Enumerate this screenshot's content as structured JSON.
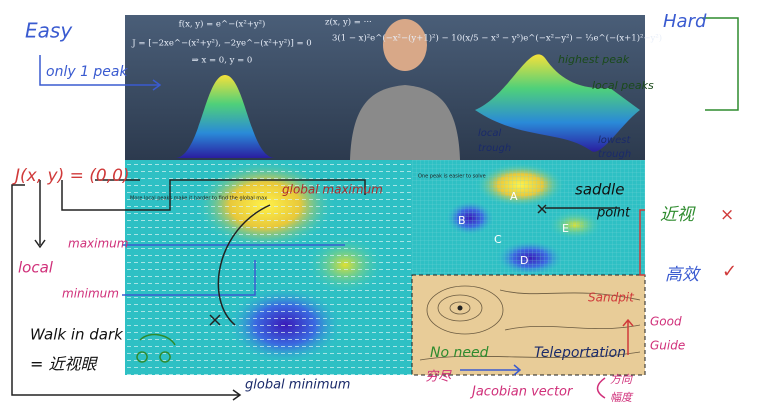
{
  "left_frame": {
    "formula_lines": [
      "f(x, y) = e^−(x²+y²)",
      "J = [−2xe^−(x²+y²), −2ye^−(x²+y²)] = 0",
      "⇒ x = 0, y = 0"
    ]
  },
  "right_frame": {
    "formula_lines": [
      "z(x, y) = ···",
      "3(1 − x)²e^(−x²−(y+1)²) − 10(x/5 − x³ − y⁵)e^(−x²−y²) − ⅓e^(−(x+1)²−y²)"
    ]
  },
  "field_caption": "More local peaks make it harder to find the global max",
  "heatmap_caption": "One peak is easier to solve",
  "points": [
    "A",
    "B",
    "C",
    "D",
    "E"
  ],
  "notes": {
    "easy": "Easy",
    "only_one_peak": "only 1 peak",
    "hard": "Hard",
    "highest_peak": "highest peak",
    "local_peaks": "local peaks",
    "local_trough": [
      "local",
      "trough"
    ],
    "lowest_trough": [
      "lowest",
      "trough"
    ],
    "jacobian_zero": "J(x, y) = (0,0)",
    "global_maximum": "global maximum",
    "maximum": "maximum",
    "minimum": "minimum",
    "local": "local",
    "walk_in_dark": "Walk in dark",
    "myopia": "= 近视眼",
    "global_minimum": "global minimum",
    "saddle_point": [
      "saddle",
      "point"
    ],
    "nearsighted": "近视",
    "cross": "×",
    "efficient": "高效",
    "check": "✓",
    "good_guide": [
      "Good",
      "Guide"
    ],
    "sandpit": "Sandpit",
    "no_need": "No need",
    "exhaustive": "穷尽",
    "teleportation": "Teleportation",
    "jacobian_vector": "Jacobian vector",
    "direction": "方向",
    "magnitude": "幅度"
  }
}
